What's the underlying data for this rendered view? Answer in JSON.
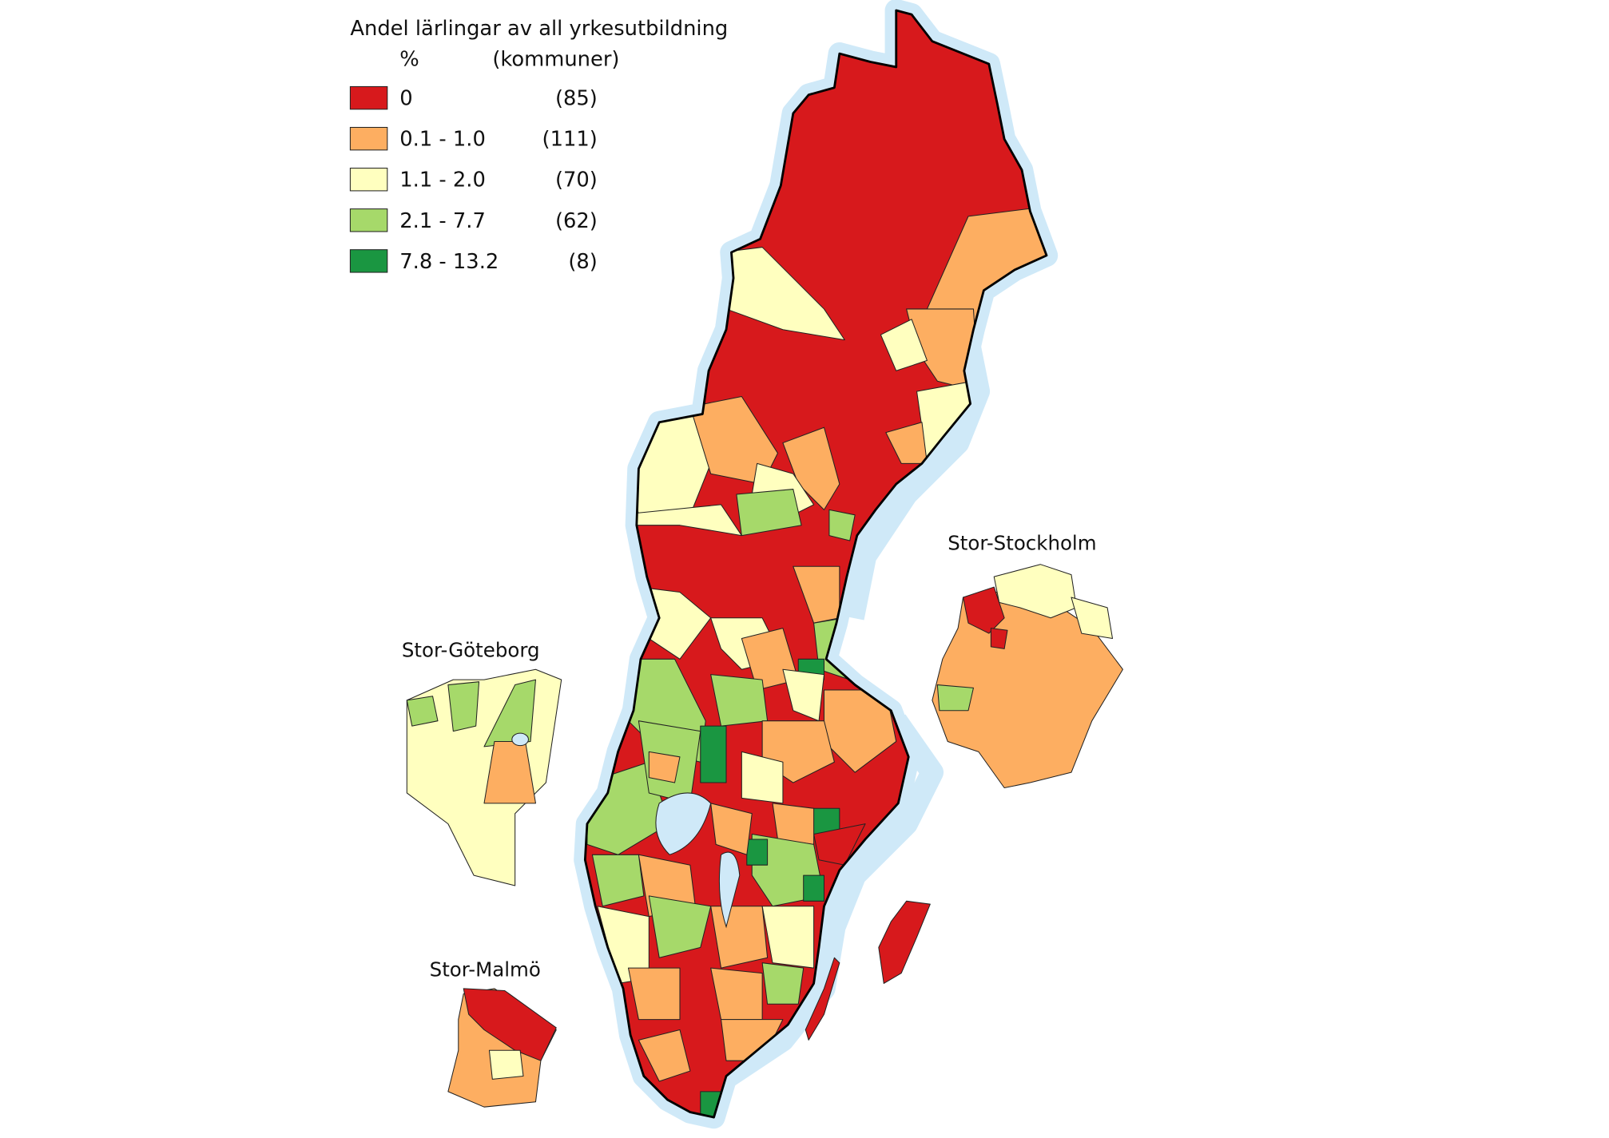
{
  "legend": {
    "title": "Andel lärlingar av all yrkesutbildning",
    "unit_header": "%",
    "count_header": "(kommuner)",
    "items": [
      {
        "label": "0",
        "count": "(85)",
        "color": "#d7191c"
      },
      {
        "label": "0.1 - 1.0",
        "count": "(111)",
        "color": "#fdae61"
      },
      {
        "label": "1.1 - 2.0",
        "count": "(70)",
        "color": "#ffffbf"
      },
      {
        "label": "2.1 - 7.7",
        "count": "(62)",
        "color": "#a6d96a"
      },
      {
        "label": "7.8 - 13.2",
        "count": "(8)",
        "color": "#1a9641"
      }
    ]
  },
  "insets": {
    "stockholm": "Stor-Stockholm",
    "goteborg": "Stor-Göteborg",
    "malmo": "Stor-Malmö"
  }
}
